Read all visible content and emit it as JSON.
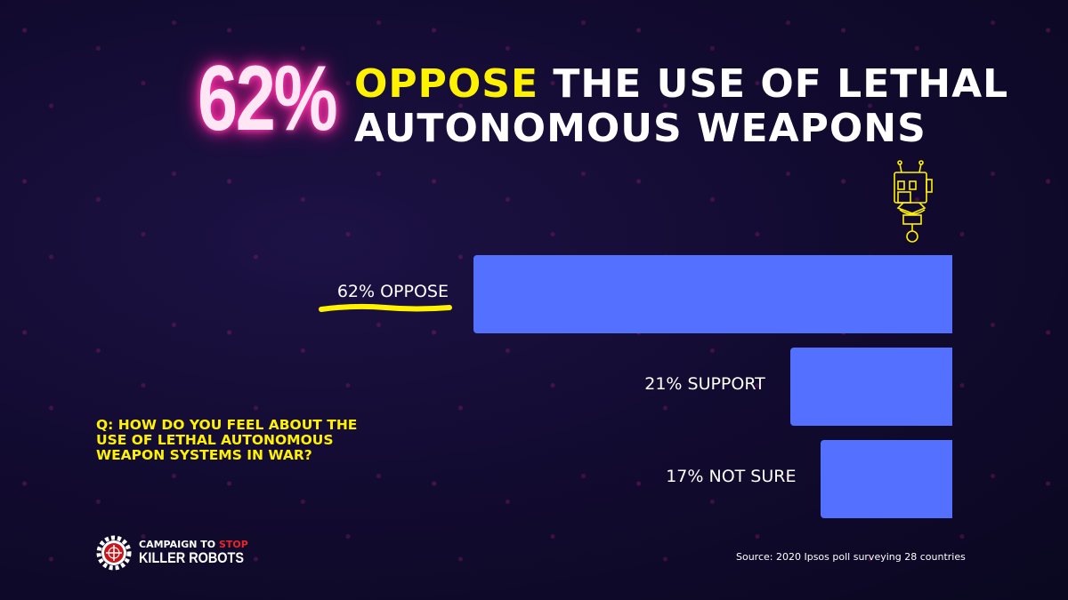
{
  "headline": {
    "big_number": "62%",
    "highlight": "OPPOSE",
    "rest_line1": "THE USE OF LETHAL",
    "line2": "AUTONOMOUS WEAPONS"
  },
  "question": "Q: HOW DO YOU FEEL ABOUT THE USE OF LETHAL AUTONOMOUS WEAPON SYSTEMS IN WAR?",
  "source": "Source: 2020 Ipsos poll surveying 28 countries",
  "logo": {
    "line1": "CAMPAIGN TO",
    "line1_accent": "STOP",
    "line2": "KILLER ROBOTS"
  },
  "colors": {
    "bar": "#5470ff",
    "highlight": "#fff200",
    "glow": "#ff2aa0",
    "background": "#120b30"
  },
  "icons": [
    "robot-illustration-icon",
    "gear-crosshair-logo-icon"
  ],
  "chart_data": {
    "type": "bar",
    "orientation": "horizontal",
    "categories": [
      "Oppose",
      "Support",
      "Not sure"
    ],
    "values": [
      62,
      21,
      17
    ],
    "labels": [
      "62% OPPOSE",
      "21% SUPPORT",
      "17% NOT SURE"
    ],
    "unit": "%",
    "grid": false
  }
}
